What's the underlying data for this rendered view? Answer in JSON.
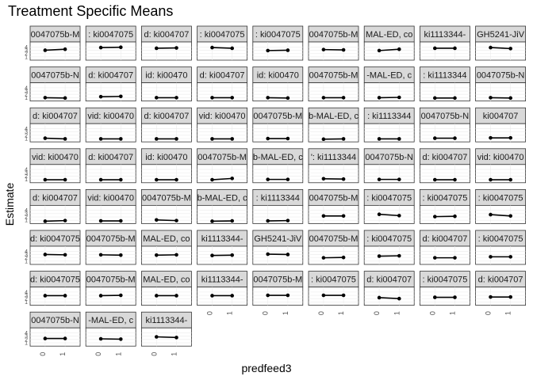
{
  "chart_data": {
    "type": "line",
    "title": "Treatment Specific Means",
    "xlabel": "predfeed3",
    "ylabel": "Estimate",
    "x_categories": [
      "0",
      "1"
    ],
    "y_ticks": [
      "1",
      "2",
      "3",
      "4"
    ],
    "ylim": [
      0,
      5.5
    ],
    "grid": true,
    "legend": "none",
    "colors": {
      "strip_bg": "#d9d9d9",
      "panel_bg": "#ffffff",
      "grid": "#ebebeb",
      "line": "#000000",
      "border": "#333333"
    },
    "panels": [
      {
        "label": "0047075b-M",
        "values": [
          3.0,
          3.3
        ]
      },
      {
        "label": ": ki0047075",
        "values": [
          3.8,
          3.9
        ]
      },
      {
        "label": "d: ki004707",
        "values": [
          3.6,
          3.7
        ]
      },
      {
        "label": ": ki0047075",
        "values": [
          3.8,
          3.6
        ]
      },
      {
        "label": ": ki0047075",
        "values": [
          2.9,
          3.0
        ]
      },
      {
        "label": "0047075b-M",
        "values": [
          3.2,
          3.1
        ]
      },
      {
        "label": "MAL-ED, co",
        "values": [
          2.9,
          3.3
        ]
      },
      {
        "label": "ki1113344-",
        "values": [
          3.6,
          3.6
        ]
      },
      {
        "label": "GH5241-JiV",
        "values": [
          3.8,
          3.5
        ]
      },
      {
        "label": "0047075b-N",
        "values": [
          1.0,
          0.9
        ]
      },
      {
        "label": "d: ki004707",
        "values": [
          1.3,
          1.4
        ]
      },
      {
        "label": "id: ki00470",
        "values": [
          1.0,
          1.0
        ]
      },
      {
        "label": "d: ki004707",
        "values": [
          1.0,
          1.0
        ]
      },
      {
        "label": "id: ki00470",
        "values": [
          1.0,
          0.9
        ]
      },
      {
        "label": "0047075b-M",
        "values": [
          1.0,
          1.0
        ]
      },
      {
        "label": "-MAL-ED, c",
        "values": [
          1.0,
          1.1
        ]
      },
      {
        "label": ": ki1113344",
        "values": [
          0.9,
          0.9
        ]
      },
      {
        "label": "0047075b-N",
        "values": [
          1.0,
          0.9
        ]
      },
      {
        "label": "d: ki004707",
        "values": [
          1.1,
          0.9
        ]
      },
      {
        "label": "vid: ki00470",
        "values": [
          0.9,
          0.9
        ]
      },
      {
        "label": "d: ki004707",
        "values": [
          0.9,
          0.9
        ]
      },
      {
        "label": "vid: ki00470",
        "values": [
          0.9,
          0.9
        ]
      },
      {
        "label": "0047075b-M",
        "values": [
          1.0,
          1.0
        ]
      },
      {
        "label": "b-MAL-ED, c",
        "values": [
          0.8,
          0.9
        ]
      },
      {
        "label": ": ki1113344",
        "values": [
          0.9,
          0.9
        ]
      },
      {
        "label": "0047075b-N",
        "values": [
          1.1,
          1.1
        ]
      },
      {
        "label": "ki004707",
        "values": [
          1.2,
          1.2
        ]
      },
      {
        "label": "vid: ki00470",
        "values": [
          0.9,
          0.9
        ]
      },
      {
        "label": "d: ki004707",
        "values": [
          0.9,
          0.9
        ]
      },
      {
        "label": "id: ki00470",
        "values": [
          0.9,
          0.9
        ]
      },
      {
        "label": "0047075b-M",
        "values": [
          0.9,
          1.3
        ]
      },
      {
        "label": "b-MAL-ED, c",
        "values": [
          1.0,
          1.0
        ]
      },
      {
        "label": "': ki1113344",
        "values": [
          1.2,
          1.1
        ]
      },
      {
        "label": "0047075b-N",
        "values": [
          1.0,
          1.0
        ]
      },
      {
        "label": "d: ki004707",
        "values": [
          0.9,
          0.9
        ]
      },
      {
        "label": "vid: ki00470",
        "values": [
          0.9,
          0.9
        ]
      },
      {
        "label": "d: ki004707",
        "values": [
          0.7,
          0.9
        ]
      },
      {
        "label": "vid: ki00470",
        "values": [
          0.8,
          0.8
        ]
      },
      {
        "label": "0047075b-M",
        "values": [
          1.1,
          0.9
        ]
      },
      {
        "label": "b-MAL-ED, c",
        "values": [
          0.7,
          0.8
        ]
      },
      {
        "label": ": ki1113344",
        "values": [
          0.8,
          0.9
        ]
      },
      {
        "label": "0047075b-M",
        "values": [
          2.3,
          2.3
        ]
      },
      {
        "label": ": ki0047075",
        "values": [
          2.8,
          2.4
        ]
      },
      {
        "label": ": ki0047075",
        "values": [
          2.1,
          2.2
        ]
      },
      {
        "label": ": ki0047075",
        "values": [
          2.7,
          2.3
        ]
      },
      {
        "label": "d: ki0047075",
        "values": [
          3.0,
          2.9
        ]
      },
      {
        "label": "0047075b-M",
        "values": [
          2.9,
          2.8
        ]
      },
      {
        "label": "MAL-ED, co",
        "values": [
          2.8,
          2.9
        ]
      },
      {
        "label": "ki1113344-",
        "values": [
          2.7,
          2.8
        ]
      },
      {
        "label": "GH5241-JiV",
        "values": [
          3.1,
          3.0
        ]
      },
      {
        "label": "0047075b-M",
        "values": [
          2.0,
          2.1
        ]
      },
      {
        "label": ": ki0047075",
        "values": [
          2.5,
          2.6
        ]
      },
      {
        "label": "d: ki004707",
        "values": [
          2.0,
          2.0
        ]
      },
      {
        "label": ": ki0047075",
        "values": [
          2.3,
          2.3
        ]
      },
      {
        "label": "d: ki0047075",
        "values": [
          2.9,
          2.9
        ]
      },
      {
        "label": "0047075b-M",
        "values": [
          2.9,
          3.0
        ]
      },
      {
        "label": "MAL-ED, co",
        "values": [
          2.9,
          2.9
        ]
      },
      {
        "label": "ki1113344-",
        "values": [
          2.9,
          2.9
        ]
      },
      {
        "label": "0047075b-M",
        "values": [
          3.0,
          3.0
        ]
      },
      {
        "label": ": ki0047075",
        "values": [
          3.0,
          3.0
        ]
      },
      {
        "label": "d: ki004707",
        "values": [
          2.3,
          2.0
        ]
      },
      {
        "label": ": ki0047075",
        "values": [
          2.4,
          2.4
        ]
      },
      {
        "label": "d: ki004707",
        "values": [
          2.5,
          2.5
        ]
      },
      {
        "label": "0047075b-N",
        "values": [
          2.3,
          2.3
        ]
      },
      {
        "label": "-MAL-ED, c",
        "values": [
          2.2,
          2.1
        ]
      },
      {
        "label": "ki1113344-",
        "values": [
          2.8,
          2.6
        ]
      }
    ]
  }
}
